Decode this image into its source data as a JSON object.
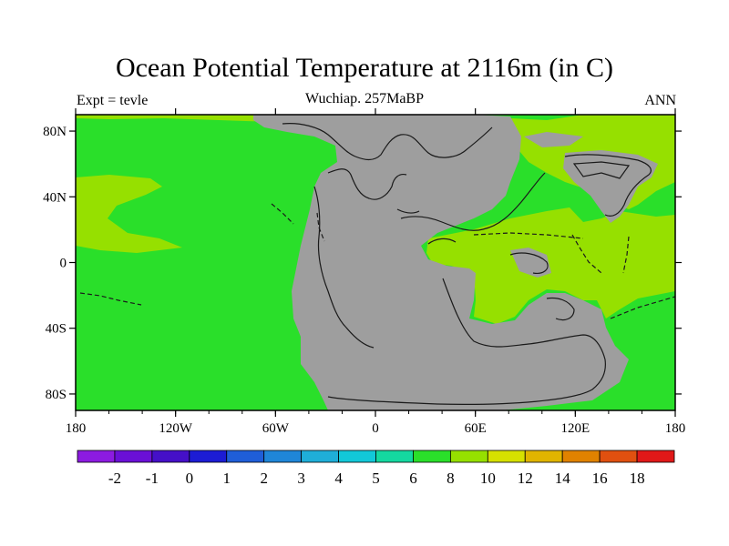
{
  "title": "Ocean Potential Temperature at 2116m (in C)",
  "subtitle": "Wuchiap. 257MaBP",
  "left_label": "Expt = tevle",
  "right_label": "ANN",
  "colors": {
    "land": "#9e9e9e",
    "warm_green": "#2adf2a",
    "yellow_green": "#96e000",
    "coast": "#1a1a1a"
  },
  "chart_data": {
    "type": "heatmap",
    "xaxis": {
      "ticks": [
        -180,
        -120,
        -60,
        0,
        60,
        120,
        180
      ],
      "tick_labels": [
        "180",
        "120W",
        "60W",
        "0",
        "60E",
        "120E",
        "180"
      ]
    },
    "yaxis": {
      "ticks": [
        -80,
        -40,
        0,
        40,
        80
      ],
      "tick_labels": [
        "80S",
        "40S",
        "0",
        "40N",
        "80N"
      ]
    },
    "colorbar": {
      "colors": [
        "#8c1be0",
        "#6a10d6",
        "#4510c8",
        "#1c1cd4",
        "#1f5ed8",
        "#1f86d8",
        "#1faed8",
        "#12c8d8",
        "#14d8a0",
        "#2adf2a",
        "#96e000",
        "#d6e000",
        "#e0b400",
        "#e08200",
        "#e05010",
        "#e01818"
      ],
      "labels": [
        "-2",
        "-1",
        "0",
        "1",
        "2",
        "3",
        "4",
        "5",
        "6",
        "8",
        "10",
        "12",
        "14",
        "16",
        "18"
      ]
    }
  }
}
